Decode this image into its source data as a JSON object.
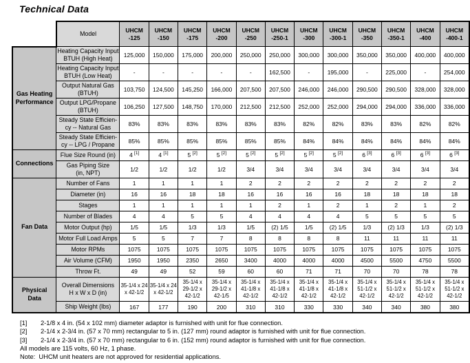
{
  "title": "Technical Data",
  "table": {
    "model_header": "Model",
    "models": [
      "UHCM\n-125",
      "UHCM\n-150",
      "UHCM\n-175",
      "UHCM\n-200",
      "UHCM\n-250",
      "UHCM\n-250-1",
      "UHCM\n-300",
      "UHCM\n-300-1",
      "UHCM\n-350",
      "UHCM\n-350-1",
      "UHCM\n-400",
      "UHCM\n-400-1"
    ],
    "groups": [
      {
        "label": "Gas Heating\nPerformance",
        "rows": [
          {
            "label": "Heating Capacity Input\nBTUH (High Heat)",
            "values": [
              "125,000",
              "150,000",
              "175,000",
              "200,000",
              "250,000",
              "250,000",
              "300,000",
              "300,000",
              "350,000",
              "350,000",
              "400,000",
              "400,000"
            ]
          },
          {
            "label": "Heating Capacity Input\nBTUH (Low Heat)",
            "values": [
              "-",
              "-",
              "-",
              "-",
              "-",
              "162,500",
              "-",
              "195,000",
              "-",
              "225,000",
              "-",
              "254,000"
            ]
          },
          {
            "label": "Output Natural Gas\n(BTUH)",
            "values": [
              "103,750",
              "124,500",
              "145,250",
              "166,000",
              "207,500",
              "207,500",
              "246,000",
              "246,000",
              "290,500",
              "290,500",
              "328,000",
              "328,000"
            ]
          },
          {
            "label": "Output LPG/Propane\n(BTUH)",
            "values": [
              "106,250",
              "127,500",
              "148,750",
              "170,000",
              "212,500",
              "212,500",
              "252,000",
              "252,000",
              "294,000",
              "294,000",
              "336,000",
              "336,000"
            ]
          },
          {
            "label": "Steady State Efficien-\ncy -- Natural Gas",
            "values": [
              "83%",
              "83%",
              "83%",
              "83%",
              "83%",
              "83%",
              "82%",
              "82%",
              "83%",
              "83%",
              "82%",
              "82%"
            ]
          },
          {
            "label": "Steady State Efficien-\ncy -- LPG / Propane",
            "values": [
              "85%",
              "85%",
              "85%",
              "85%",
              "85%",
              "85%",
              "84%",
              "84%",
              "84%",
              "84%",
              "84%",
              "84%"
            ]
          }
        ]
      },
      {
        "label": "Connections",
        "rows": [
          {
            "label": "Flue Size Round (in)",
            "values": [
              "4 [1]",
              "4 [1]",
              "5 [2]",
              "5 [2]",
              "5 [2]",
              "5 [2]",
              "5 [2]",
              "5 [2]",
              "6 [3]",
              "6 [3]",
              "6 [3]",
              "6 [3]"
            ]
          },
          {
            "label": "Gas Piping Size\n(in, NPT)",
            "values": [
              "1/2",
              "1/2",
              "1/2",
              "1/2",
              "3/4",
              "3/4",
              "3/4",
              "3/4",
              "3/4",
              "3/4",
              "3/4",
              "3/4"
            ]
          }
        ]
      },
      {
        "label": "Fan Data",
        "rows": [
          {
            "label": "Number of Fans",
            "values": [
              "1",
              "1",
              "1",
              "1",
              "2",
              "2",
              "2",
              "2",
              "2",
              "2",
              "2",
              "2"
            ]
          },
          {
            "label": "Diameter (in)",
            "values": [
              "16",
              "16",
              "18",
              "18",
              "16",
              "16",
              "16",
              "16",
              "18",
              "18",
              "18",
              "18"
            ]
          },
          {
            "label": "Stages",
            "values": [
              "1",
              "1",
              "1",
              "1",
              "1",
              "2",
              "1",
              "2",
              "1",
              "2",
              "1",
              "2"
            ]
          },
          {
            "label": "Number of Blades",
            "values": [
              "4",
              "4",
              "5",
              "5",
              "4",
              "4",
              "4",
              "4",
              "5",
              "5",
              "5",
              "5"
            ]
          },
          {
            "label": "Motor Output (hp)",
            "values": [
              "1/5",
              "1/5",
              "1/3",
              "1/3",
              "1/5",
              "(2) 1/5",
              "1/5",
              "(2) 1/5",
              "1/3",
              "(2) 1/3",
              "1/3",
              "(2) 1/3"
            ]
          },
          {
            "label": "Motor Full Load Amps",
            "values": [
              "5",
              "5",
              "7",
              "7",
              "8",
              "8",
              "8",
              "8",
              "11",
              "11",
              "11",
              "11"
            ]
          },
          {
            "label": "Motor RPMs",
            "values": [
              "1075",
              "1075",
              "1075",
              "1075",
              "1075",
              "1075",
              "1075",
              "1075",
              "1075",
              "1075",
              "1075",
              "1075"
            ]
          },
          {
            "label": "Air Volume (CFM)",
            "values": [
              "1950",
              "1950",
              "2350",
              "2650",
              "3400",
              "4000",
              "4000",
              "4000",
              "4500",
              "5500",
              "4750",
              "5500"
            ]
          },
          {
            "label": "Throw Ft.",
            "values": [
              "49",
              "49",
              "52",
              "59",
              "60",
              "60",
              "71",
              "71",
              "70",
              "70",
              "78",
              "78"
            ]
          }
        ]
      },
      {
        "label": "Physical\nData",
        "rows": [
          {
            "label": "Overall Dimensions\nH x W x D (in)",
            "values": [
              "35-1/4 x 24 x 42-1/2",
              "35-1/4 x 24 x 42-1/2",
              "35-1/4 x 29-1/2 x 42-1/2",
              "35-1/4 x 29-1/2 x 42-1/5",
              "35-1/4 x 41-1/8 x 42-1/2",
              "35-1/4 x 41-1/8 x 42-1/2",
              "35-1/4 x 41-1/8 x 42-1/2",
              "35-1/4 x 41-1/8 x 42-1/2",
              "35-1/4 x 51-1/2 x 42-1/2",
              "35-1/4 x 51-1/2 x 42-1/2",
              "35-1/4 x 51-1/2 x 42-1/2",
              "35-1/4 x 51-1/2 x 42-1/2"
            ]
          },
          {
            "label": "Ship Weight (lbs)",
            "values": [
              "167",
              "177",
              "190",
              "200",
              "310",
              "310",
              "330",
              "330",
              "340",
              "340",
              "380",
              "380"
            ]
          }
        ]
      }
    ]
  },
  "footnotes": [
    {
      "tag": "[1]",
      "text": "2-1/8 x 4 in. (54 x 102 mm) diameter adaptor is furnished with unit for flue connection."
    },
    {
      "tag": "[2]",
      "text": "2-1/4 x 2-3/4 in. (57 x 70 mm) rectangular to 5 in. (127 mm) round adaptor is furnished with unit for flue connection."
    },
    {
      "tag": "[3]",
      "text": "2-1/4 x 2-3/4 in. (57 x 70 mm) rectangular to 6 in. (152 mm) round adaptor is furnished with unit for flue connection."
    },
    {
      "tag": "",
      "text": "All models are 115 volts, 60 Hz, 1 phase."
    },
    {
      "tag": "",
      "text": "Note:  UHCM unit heaters are not approved for residential applications."
    }
  ],
  "colors": {
    "header_bg": "#c6c6c6",
    "label_bg": "#d9d9d9",
    "border": "#000000"
  }
}
